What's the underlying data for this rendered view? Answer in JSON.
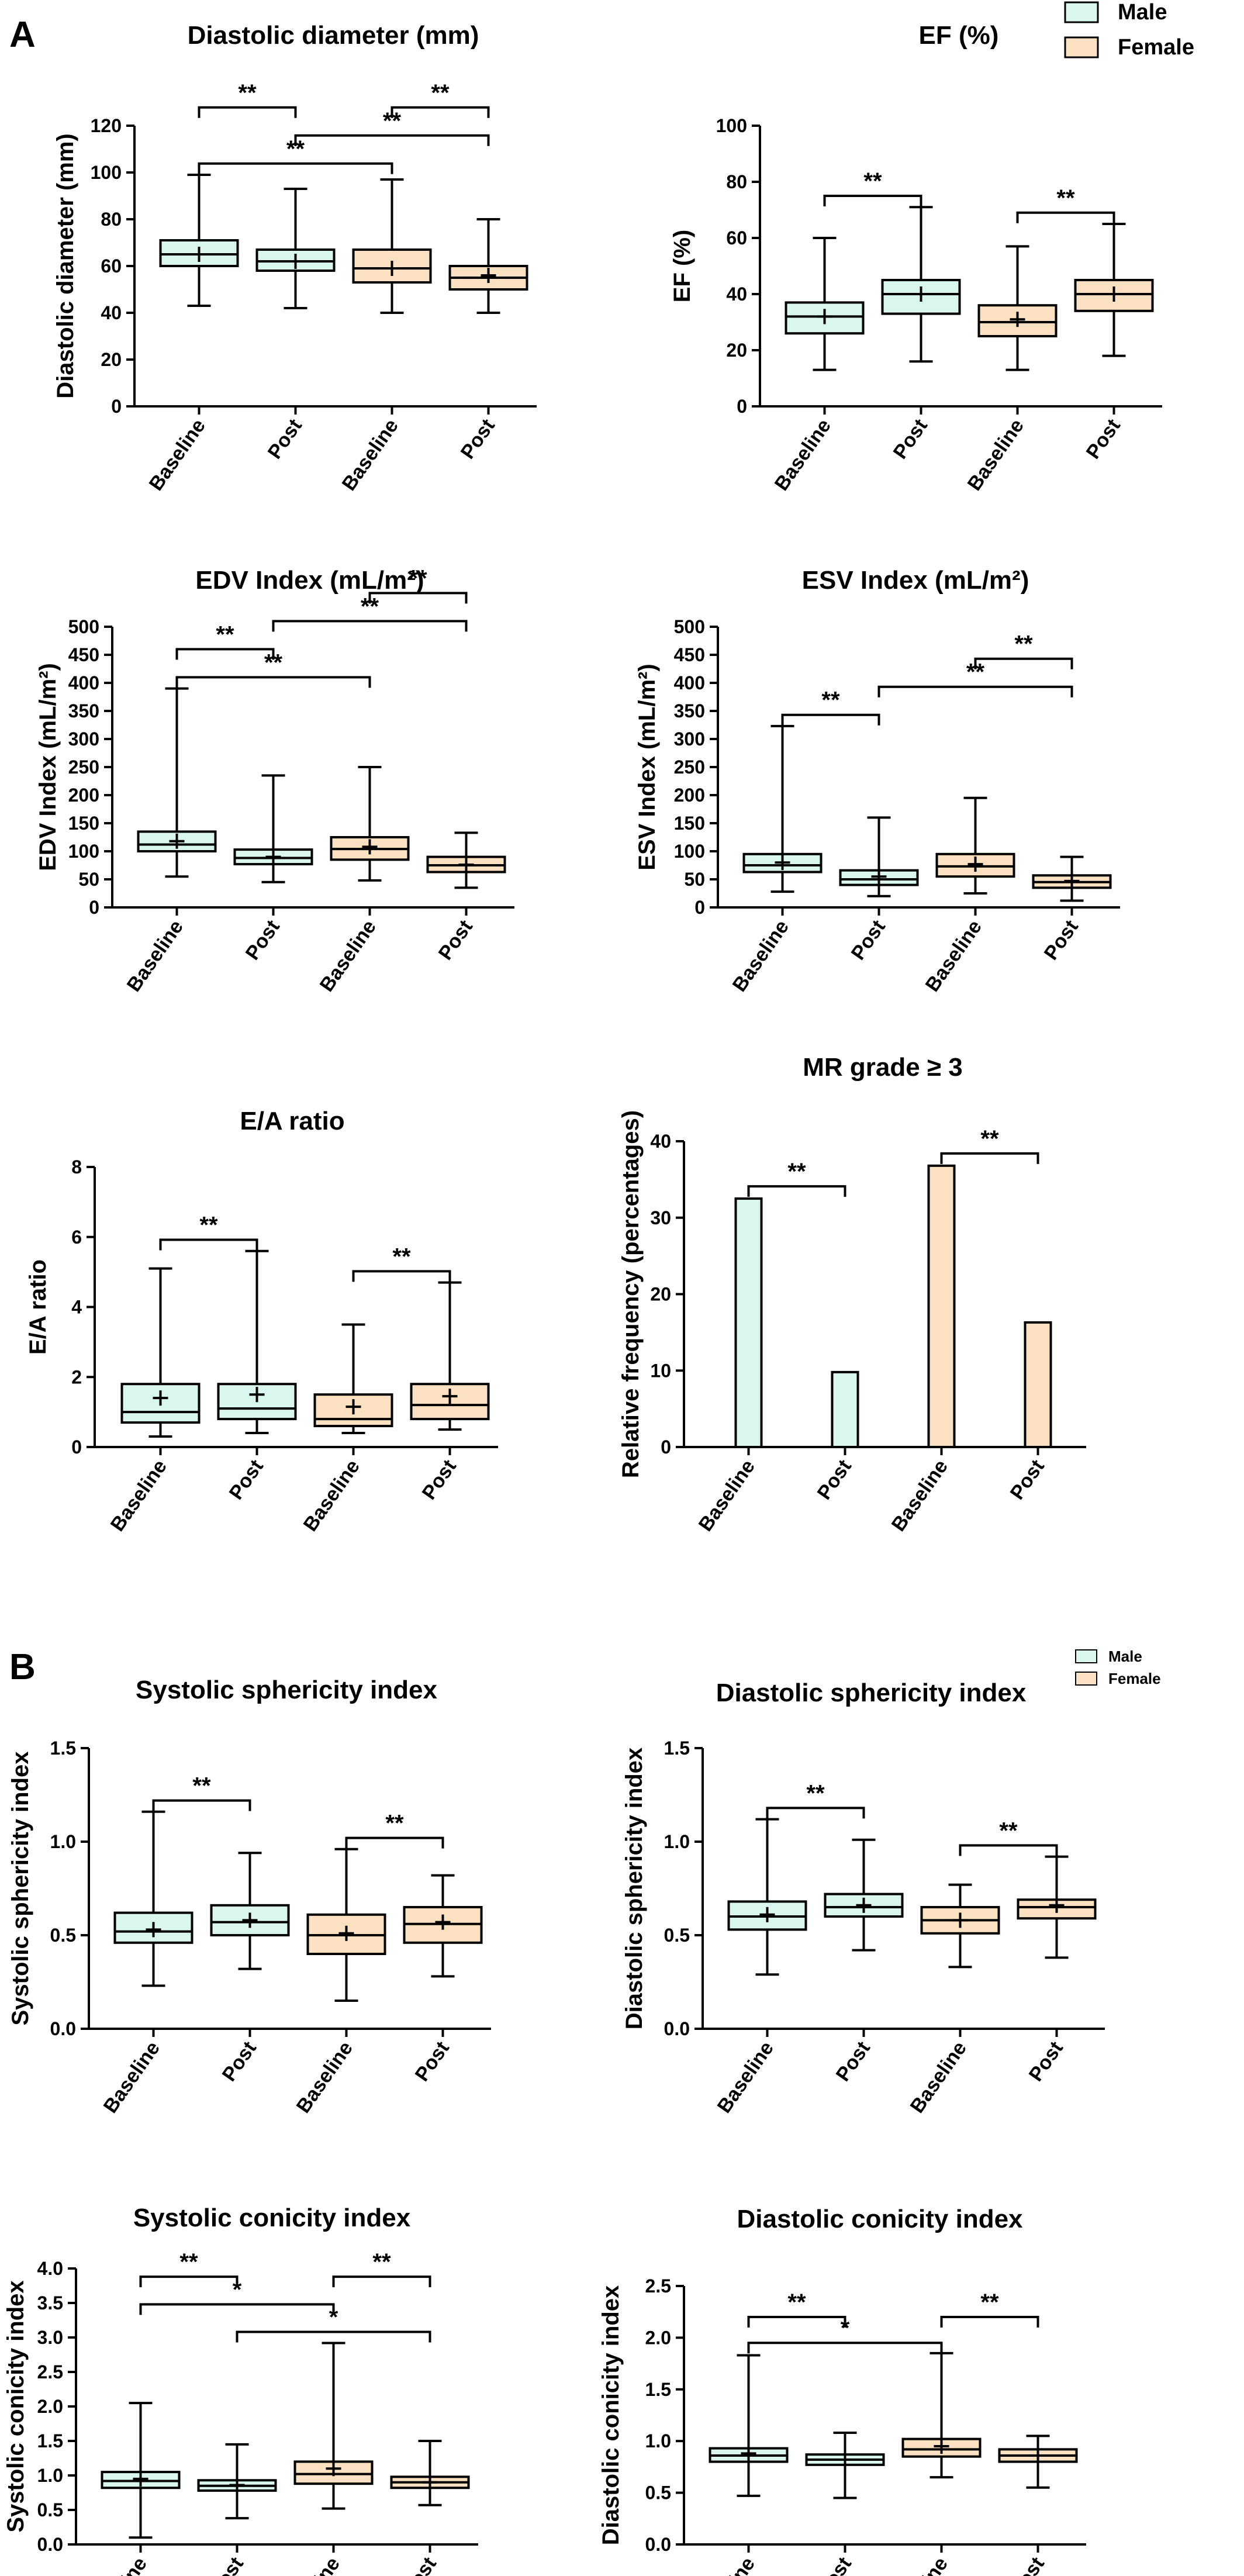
{
  "panel_labels": [
    "A",
    "B"
  ],
  "legend": [
    {
      "label": "Male",
      "color": "#d9f7ef"
    },
    {
      "label": "Female",
      "color": "#fbe0c2"
    }
  ],
  "colors": {
    "male": "#d9f7ef",
    "female": "#fbe0c2",
    "stroke": "#000000"
  },
  "chart_data": [
    {
      "type": "box",
      "title": "Diastolic diameter (mm)",
      "ylabel": "Diastolic diameter (mm)",
      "ylim": [
        0,
        120
      ],
      "yticks": [
        "0",
        "20",
        "40",
        "60",
        "80",
        "100",
        "120"
      ],
      "categories": [
        "Baseline",
        "Post",
        "Baseline",
        "Post"
      ],
      "groups": [
        "Male",
        "Male",
        "Female",
        "Female"
      ],
      "boxes": [
        {
          "min": 43,
          "q1": 60,
          "median": 65,
          "q3": 71,
          "max": 99,
          "mean": 65
        },
        {
          "min": 42,
          "q1": 58,
          "median": 62,
          "q3": 67,
          "max": 93,
          "mean": 62
        },
        {
          "min": 40,
          "q1": 53,
          "median": 59,
          "q3": 67,
          "max": 97,
          "mean": 59
        },
        {
          "min": 40,
          "q1": 50,
          "median": 55,
          "q3": 60,
          "max": 80,
          "mean": 56
        }
      ],
      "significance": [
        {
          "from": 1,
          "to": 3,
          "label": "**"
        },
        {
          "from": 2,
          "to": 4,
          "label": "**"
        },
        {
          "from": 1,
          "to": 2,
          "label": "**"
        },
        {
          "from": 3,
          "to": 4,
          "label": "**"
        }
      ]
    },
    {
      "type": "box",
      "title": "EF (%)",
      "ylabel": "EF (%)",
      "ylim": [
        0,
        100
      ],
      "yticks": [
        "0",
        "20",
        "40",
        "60",
        "80",
        "100"
      ],
      "categories": [
        "Baseline",
        "Post",
        "Baseline",
        "Post"
      ],
      "groups": [
        "Male",
        "Male",
        "Female",
        "Female"
      ],
      "boxes": [
        {
          "min": 13,
          "q1": 26,
          "median": 32,
          "q3": 37,
          "max": 60,
          "mean": 32
        },
        {
          "min": 16,
          "q1": 33,
          "median": 40,
          "q3": 45,
          "max": 71,
          "mean": 40
        },
        {
          "min": 13,
          "q1": 25,
          "median": 30,
          "q3": 36,
          "max": 57,
          "mean": 31
        },
        {
          "min": 18,
          "q1": 34,
          "median": 40,
          "q3": 45,
          "max": 65,
          "mean": 40
        }
      ],
      "significance": [
        {
          "from": 1,
          "to": 2,
          "label": "**"
        },
        {
          "from": 3,
          "to": 4,
          "label": "**"
        }
      ]
    },
    {
      "type": "box",
      "title": "EDV Index (mL/m²)",
      "ylabel": "EDV Index (mL/m²)",
      "ylim": [
        0,
        500
      ],
      "yticks": [
        "0",
        "50",
        "100",
        "150",
        "200",
        "250",
        "300",
        "350",
        "400",
        "450",
        "500"
      ],
      "categories": [
        "Baseline",
        "Post",
        "Baseline",
        "Post"
      ],
      "groups": [
        "Male",
        "Male",
        "Female",
        "Female"
      ],
      "boxes": [
        {
          "min": 55,
          "q1": 100,
          "median": 112,
          "q3": 135,
          "max": 390,
          "mean": 118
        },
        {
          "min": 45,
          "q1": 77,
          "median": 88,
          "q3": 103,
          "max": 235,
          "mean": 90
        },
        {
          "min": 48,
          "q1": 85,
          "median": 104,
          "q3": 125,
          "max": 250,
          "mean": 108
        },
        {
          "min": 35,
          "q1": 63,
          "median": 75,
          "q3": 90,
          "max": 133,
          "mean": 76
        }
      ],
      "significance": [
        {
          "from": 1,
          "to": 3,
          "label": "**"
        },
        {
          "from": 1,
          "to": 2,
          "label": "**"
        },
        {
          "from": 2,
          "to": 4,
          "label": "**"
        },
        {
          "from": 3,
          "to": 4,
          "label": "**"
        }
      ]
    },
    {
      "type": "box",
      "title": "ESV Index (mL/m²)",
      "ylabel": "ESV Index (mL/m²)",
      "ylim": [
        0,
        500
      ],
      "yticks": [
        "0",
        "50",
        "100",
        "150",
        "200",
        "250",
        "300",
        "350",
        "400",
        "450",
        "500"
      ],
      "categories": [
        "Baseline",
        "Post",
        "Baseline",
        "Post"
      ],
      "groups": [
        "Male",
        "Male",
        "Female",
        "Female"
      ],
      "boxes": [
        {
          "min": 28,
          "q1": 63,
          "median": 75,
          "q3": 95,
          "max": 323,
          "mean": 80
        },
        {
          "min": 20,
          "q1": 40,
          "median": 50,
          "q3": 66,
          "max": 160,
          "mean": 55
        },
        {
          "min": 25,
          "q1": 55,
          "median": 73,
          "q3": 95,
          "max": 195,
          "mean": 77
        },
        {
          "min": 12,
          "q1": 35,
          "median": 45,
          "q3": 57,
          "max": 90,
          "mean": 47
        }
      ],
      "significance": [
        {
          "from": 1,
          "to": 2,
          "label": "**"
        },
        {
          "from": 2,
          "to": 4,
          "label": "**"
        },
        {
          "from": 3,
          "to": 4,
          "label": "**"
        }
      ]
    },
    {
      "type": "box",
      "title": "E/A ratio",
      "ylabel": "E/A ratio",
      "ylim": [
        0,
        8
      ],
      "yticks": [
        "0",
        "2",
        "4",
        "6",
        "8"
      ],
      "categories": [
        "Baseline",
        "Post",
        "Baseline",
        "Post"
      ],
      "groups": [
        "Male",
        "Male",
        "Female",
        "Female"
      ],
      "boxes": [
        {
          "min": 0.3,
          "q1": 0.7,
          "median": 1.0,
          "q3": 1.8,
          "max": 5.1,
          "mean": 1.4
        },
        {
          "min": 0.4,
          "q1": 0.8,
          "median": 1.1,
          "q3": 1.8,
          "max": 5.6,
          "mean": 1.5
        },
        {
          "min": 0.4,
          "q1": 0.6,
          "median": 0.8,
          "q3": 1.5,
          "max": 3.5,
          "mean": 1.15
        },
        {
          "min": 0.5,
          "q1": 0.8,
          "median": 1.2,
          "q3": 1.8,
          "max": 4.7,
          "mean": 1.45
        }
      ],
      "significance": [
        {
          "from": 1,
          "to": 2,
          "label": "**"
        },
        {
          "from": 3,
          "to": 4,
          "label": "**"
        }
      ]
    },
    {
      "type": "bar",
      "title": "MR grade ≥ 3",
      "ylabel": "Relative frequency (percentages)",
      "ylim": [
        0,
        40
      ],
      "yticks": [
        "0",
        "10",
        "20",
        "30",
        "40"
      ],
      "categories": [
        "Baseline",
        "Post",
        "Baseline",
        "Post"
      ],
      "groups": [
        "Male",
        "Male",
        "Female",
        "Female"
      ],
      "values": [
        32.5,
        9.8,
        36.8,
        16.3
      ],
      "significance": [
        {
          "from": 1,
          "to": 2,
          "label": "**"
        },
        {
          "from": 3,
          "to": 4,
          "label": "**"
        }
      ]
    },
    {
      "type": "box",
      "title": "Systolic sphericity index",
      "ylabel": "Systolic sphericity index",
      "ylim": [
        0,
        1.5
      ],
      "yticks": [
        "0.0",
        "0.5",
        "1.0",
        "1.5"
      ],
      "categories": [
        "Baseline",
        "Post",
        "Baseline",
        "Post"
      ],
      "groups": [
        "Male",
        "Male",
        "Female",
        "Female"
      ],
      "boxes": [
        {
          "min": 0.23,
          "q1": 0.46,
          "median": 0.52,
          "q3": 0.62,
          "max": 1.16,
          "mean": 0.53
        },
        {
          "min": 0.32,
          "q1": 0.5,
          "median": 0.57,
          "q3": 0.66,
          "max": 0.94,
          "mean": 0.58
        },
        {
          "min": 0.15,
          "q1": 0.4,
          "median": 0.5,
          "q3": 0.61,
          "max": 0.96,
          "mean": 0.51
        },
        {
          "min": 0.28,
          "q1": 0.46,
          "median": 0.56,
          "q3": 0.65,
          "max": 0.82,
          "mean": 0.57
        }
      ],
      "significance": [
        {
          "from": 1,
          "to": 2,
          "label": "**"
        },
        {
          "from": 3,
          "to": 4,
          "label": "**"
        }
      ]
    },
    {
      "type": "box",
      "title": "Diastolic sphericity index",
      "ylabel": "Diastolic sphericity index",
      "ylim": [
        0,
        1.5
      ],
      "yticks": [
        "0.0",
        "0.5",
        "1.0",
        "1.5"
      ],
      "categories": [
        "Baseline",
        "Post",
        "Baseline",
        "Post"
      ],
      "groups": [
        "Male",
        "Male",
        "Female",
        "Female"
      ],
      "boxes": [
        {
          "min": 0.29,
          "q1": 0.53,
          "median": 0.6,
          "q3": 0.68,
          "max": 1.12,
          "mean": 0.61
        },
        {
          "min": 0.42,
          "q1": 0.6,
          "median": 0.65,
          "q3": 0.72,
          "max": 1.01,
          "mean": 0.66
        },
        {
          "min": 0.33,
          "q1": 0.51,
          "median": 0.58,
          "q3": 0.65,
          "max": 0.77,
          "mean": 0.58
        },
        {
          "min": 0.38,
          "q1": 0.59,
          "median": 0.65,
          "q3": 0.69,
          "max": 0.92,
          "mean": 0.66
        }
      ],
      "significance": [
        {
          "from": 1,
          "to": 2,
          "label": "**"
        },
        {
          "from": 3,
          "to": 4,
          "label": "**"
        }
      ]
    },
    {
      "type": "box",
      "title": "Systolic conicity index",
      "ylabel": "Systolic conicity index",
      "ylim": [
        0,
        4.0
      ],
      "yticks": [
        "0.0",
        "0.5",
        "1.0",
        "1.5",
        "2.0",
        "2.5",
        "3.0",
        "3.5",
        "4.0"
      ],
      "categories": [
        "Baseline",
        "Post",
        "Baseline",
        "Post"
      ],
      "groups": [
        "Male",
        "Male",
        "Female",
        "Female"
      ],
      "boxes": [
        {
          "min": 0.1,
          "q1": 0.82,
          "median": 0.92,
          "q3": 1.05,
          "max": 2.05,
          "mean": 0.95
        },
        {
          "min": 0.38,
          "q1": 0.78,
          "median": 0.85,
          "q3": 0.93,
          "max": 1.45,
          "mean": 0.86
        },
        {
          "min": 0.52,
          "q1": 0.88,
          "median": 1.02,
          "q3": 1.2,
          "max": 2.92,
          "mean": 1.1
        },
        {
          "min": 0.57,
          "q1": 0.82,
          "median": 0.9,
          "q3": 0.98,
          "max": 1.5,
          "mean": 0.9
        }
      ],
      "significance": [
        {
          "from": 2,
          "to": 4,
          "label": "*"
        },
        {
          "from": 1,
          "to": 3,
          "label": "*"
        },
        {
          "from": 3,
          "to": 4,
          "label": "**"
        },
        {
          "from": 1,
          "to": 2,
          "label": "**"
        }
      ]
    },
    {
      "type": "box",
      "title": "Diastolic conicity index",
      "ylabel": "Diastolic conicity index",
      "ylim": [
        0,
        2.5
      ],
      "yticks": [
        "0.0",
        "0.5",
        "1.0",
        "1.5",
        "2.0",
        "2.5"
      ],
      "categories": [
        "Baseline",
        "Post",
        "Baseline",
        "Post"
      ],
      "groups": [
        "Male",
        "Male",
        "Female",
        "Female"
      ],
      "boxes": [
        {
          "min": 0.47,
          "q1": 0.8,
          "median": 0.86,
          "q3": 0.93,
          "max": 1.83,
          "mean": 0.88
        },
        {
          "min": 0.45,
          "q1": 0.77,
          "median": 0.82,
          "q3": 0.87,
          "max": 1.08,
          "mean": 0.82
        },
        {
          "min": 0.65,
          "q1": 0.85,
          "median": 0.92,
          "q3": 1.02,
          "max": 1.85,
          "mean": 0.95
        },
        {
          "min": 0.55,
          "q1": 0.8,
          "median": 0.86,
          "q3": 0.92,
          "max": 1.05,
          "mean": 0.86
        }
      ],
      "significance": [
        {
          "from": 1,
          "to": 3,
          "label": "*"
        },
        {
          "from": 1,
          "to": 2,
          "label": "**"
        },
        {
          "from": 3,
          "to": 4,
          "label": "**"
        }
      ]
    }
  ]
}
